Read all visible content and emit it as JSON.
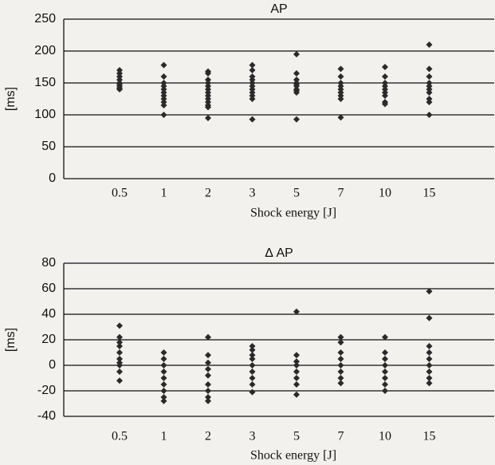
{
  "chart_data": [
    {
      "type": "strip",
      "title": "AP",
      "ylabel": "[ms]",
      "xlabel": "Shock energy [J]",
      "categories": [
        "0.5",
        "1",
        "2",
        "3",
        "5",
        "7",
        "10",
        "15"
      ],
      "values": [
        [
          170,
          165,
          160,
          155,
          150,
          148,
          145,
          142,
          140
        ],
        [
          178,
          160,
          150,
          145,
          140,
          135,
          130,
          125,
          120,
          115,
          100
        ],
        [
          168,
          165,
          155,
          150,
          145,
          140,
          135,
          130,
          125,
          120,
          115,
          112,
          95
        ],
        [
          178,
          170,
          160,
          155,
          150,
          145,
          140,
          135,
          130,
          125,
          93
        ],
        [
          195,
          165,
          155,
          150,
          148,
          145,
          140,
          138,
          135,
          93
        ],
        [
          172,
          160,
          150,
          145,
          140,
          135,
          130,
          125,
          96
        ],
        [
          175,
          160,
          150,
          145,
          140,
          135,
          130,
          120,
          117
        ],
        [
          210,
          172,
          160,
          150,
          145,
          140,
          135,
          125,
          120,
          100
        ]
      ],
      "color": "#2a2a2a",
      "ylim": [
        0,
        250
      ],
      "yticks": [
        0,
        50,
        100,
        150,
        200,
        250
      ],
      "grid": true
    },
    {
      "type": "strip",
      "title": "Δ AP",
      "ylabel": "[ms]",
      "xlabel": "Shock energy [J]",
      "categories": [
        "0.5",
        "1",
        "2",
        "3",
        "5",
        "7",
        "10",
        "15"
      ],
      "values": [
        [
          31,
          22,
          18,
          15,
          10,
          5,
          2,
          0,
          -5,
          -12
        ],
        [
          10,
          5,
          0,
          -5,
          -10,
          -15,
          -20,
          -25,
          -28
        ],
        [
          22,
          8,
          2,
          -3,
          -8,
          -15,
          -20,
          -25,
          -28
        ],
        [
          15,
          12,
          8,
          5,
          0,
          -5,
          -10,
          -15,
          -21
        ],
        [
          42,
          8,
          3,
          0,
          -5,
          -10,
          -15,
          -23
        ],
        [
          22,
          18,
          10,
          5,
          0,
          -5,
          -10,
          -14
        ],
        [
          22,
          10,
          5,
          0,
          -5,
          -10,
          -15,
          -20
        ],
        [
          58,
          37,
          15,
          10,
          5,
          0,
          -5,
          -10,
          -14
        ]
      ],
      "color": "#2a2a2a",
      "ylim": [
        -40,
        80
      ],
      "yticks": [
        -40,
        -20,
        0,
        20,
        40,
        60,
        80
      ],
      "grid": true
    }
  ]
}
